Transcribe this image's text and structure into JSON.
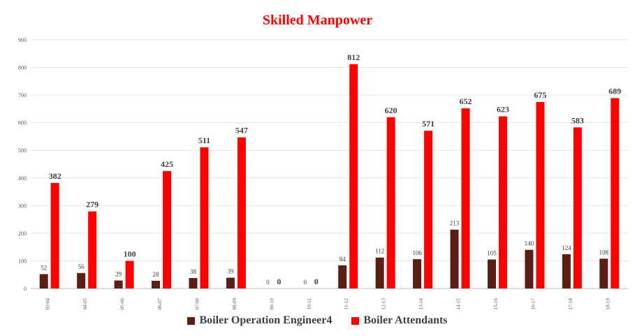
{
  "chart_data": {
    "type": "bar",
    "title": "Skilled Manpower",
    "categories": [
      "03-04",
      "04-05",
      "05-06",
      "06-07",
      "07-08",
      "08-09",
      "09-10",
      "10-11",
      "11-12",
      "12-13",
      "13-14",
      "14-15",
      "15-16",
      "16-17",
      "17-18",
      "18-19"
    ],
    "series": [
      {
        "name": "Boiler Operation Engineer4",
        "color": "#5a1e14",
        "values": [
          52,
          56,
          29,
          28,
          38,
          39,
          0,
          0,
          84,
          112,
          106,
          213,
          105,
          140,
          124,
          108
        ]
      },
      {
        "name": "Boiler Attendants",
        "color": "#ff0000",
        "values": [
          382,
          279,
          100,
          425,
          511,
          547,
          0,
          0,
          812,
          620,
          571,
          652,
          623,
          675,
          583,
          689
        ]
      }
    ],
    "ylim": [
      0,
      900
    ],
    "yticks": [
      0,
      100,
      200,
      300,
      400,
      500,
      600,
      700,
      800,
      900
    ],
    "grid": true,
    "legend_position": "bottom"
  }
}
